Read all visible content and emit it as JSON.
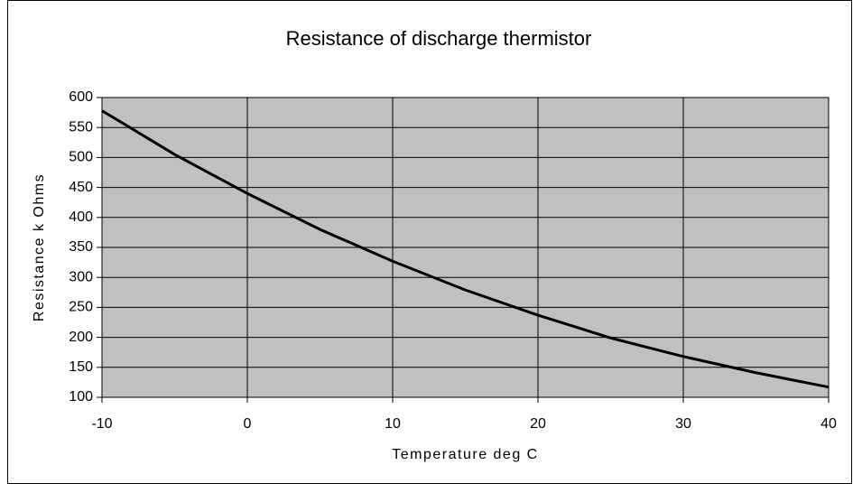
{
  "chart_data": {
    "type": "line",
    "title": "Resistance of discharge thermistor",
    "xlabel": "Temperature deg C",
    "ylabel": "Resistance k Ohms",
    "x": [
      -10,
      -5,
      0,
      5,
      10,
      15,
      20,
      25,
      30,
      35,
      40
    ],
    "series": [
      {
        "name": "Resistance",
        "color": "#000000",
        "values": [
          578,
          505,
          440,
          380,
          327,
          279,
          237,
          199,
          168,
          141,
          117
        ]
      }
    ],
    "xlim": [
      -10,
      40
    ],
    "xticks": [
      -10,
      0,
      10,
      20,
      30,
      40
    ],
    "ylim": [
      100,
      600
    ],
    "yticks": [
      100,
      150,
      200,
      250,
      300,
      350,
      400,
      450,
      500,
      550,
      600
    ],
    "grid": true,
    "plot_background": "#c0c0c0"
  }
}
